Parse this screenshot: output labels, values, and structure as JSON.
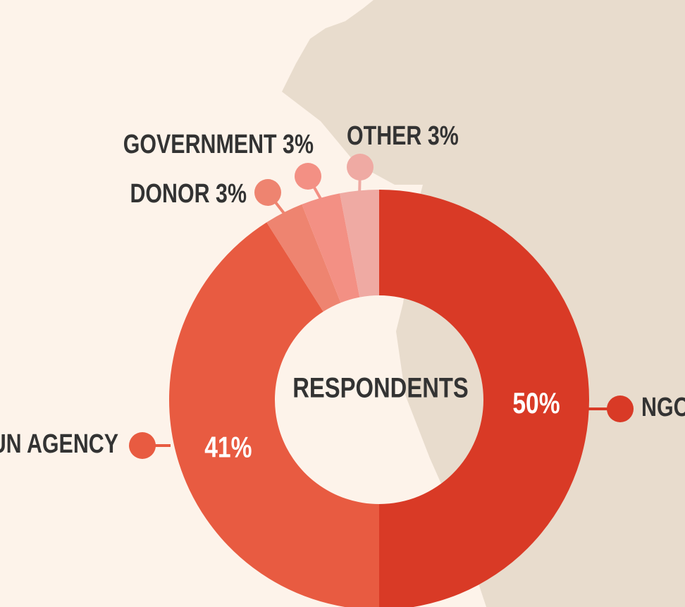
{
  "chart_data": {
    "type": "pie",
    "donut": true,
    "center_label": "RESPONDENTS",
    "categories": [
      "NGO",
      "UN AGENCY",
      "DONOR",
      "GOVERNMENT",
      "OTHER"
    ],
    "values": [
      50,
      41,
      3,
      3,
      3
    ],
    "value_labels": [
      "50%",
      "41%",
      "3%",
      "3%",
      "3%"
    ],
    "colors": [
      "#d93a26",
      "#e85b41",
      "#ee8470",
      "#f39084",
      "#efaaa3"
    ]
  }
}
